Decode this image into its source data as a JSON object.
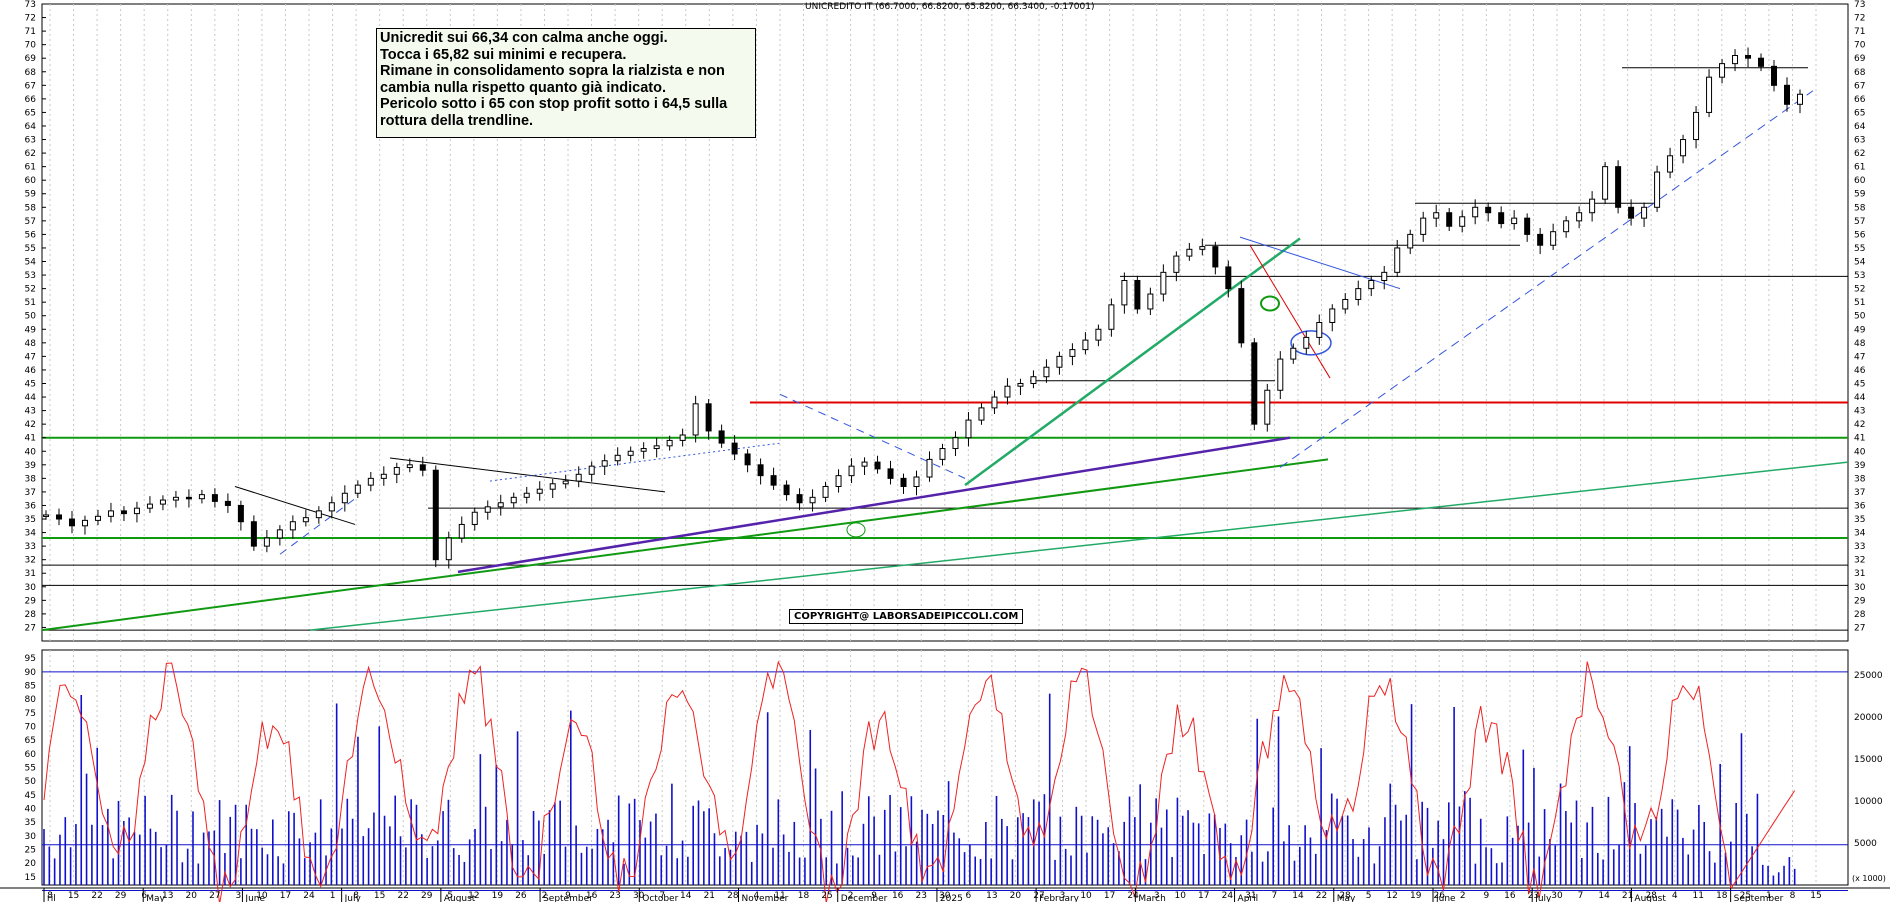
{
  "chart_data": [
    {
      "type": "candlestick",
      "title": "UNICREDITO IT (66.7000, 66.8200, 65.8200, 66.3400, -0.17001)",
      "ylim": [
        26,
        73
      ],
      "y_ticks": [
        27,
        28,
        29,
        30,
        31,
        32,
        33,
        34,
        35,
        36,
        37,
        38,
        39,
        40,
        41,
        42,
        43,
        44,
        45,
        46,
        47,
        48,
        49,
        50,
        51,
        52,
        53,
        54,
        55,
        56,
        57,
        58,
        59,
        60,
        61,
        62,
        63,
        64,
        65,
        66,
        67,
        68,
        69,
        70,
        71,
        72,
        73
      ],
      "x_day_ticks": [
        "8",
        "15",
        "22",
        "29",
        "6",
        "13",
        "20",
        "27",
        "3",
        "10",
        "17",
        "24",
        "1",
        "8",
        "15",
        "22",
        "29",
        "5",
        "12",
        "19",
        "26",
        "2",
        "9",
        "16",
        "23",
        "30",
        "7",
        "14",
        "21",
        "28",
        "4",
        "11",
        "18",
        "25",
        "2",
        "9",
        "16",
        "23",
        "30",
        "6",
        "13",
        "20",
        "27",
        "3",
        "10",
        "17",
        "24",
        "3",
        "10",
        "17",
        "24",
        "31",
        "7",
        "14",
        "22",
        "28",
        "5",
        "12",
        "19",
        "26",
        "2",
        "9",
        "16",
        "23",
        "30",
        "7",
        "14",
        "21",
        "28",
        "4",
        "11",
        "18",
        "25",
        "1",
        "8",
        "15"
      ],
      "x_month_labels": [
        "ril",
        "May",
        "June",
        "July",
        "August",
        "September",
        "October",
        "November",
        "December",
        "2025",
        "February",
        "March",
        "April",
        "May",
        "June",
        "July",
        "August",
        "September"
      ],
      "closes": [
        35.3,
        35.0,
        34.5,
        34.9,
        35.2,
        35.6,
        35.4,
        35.8,
        36.1,
        36.4,
        36.6,
        36.5,
        36.8,
        36.3,
        36.0,
        34.8,
        33.0,
        33.6,
        34.2,
        34.8,
        35.1,
        35.6,
        36.2,
        36.9,
        37.5,
        38.0,
        38.3,
        38.8,
        39.0,
        38.6,
        32.0,
        33.6,
        34.6,
        35.5,
        35.9,
        36.2,
        36.6,
        36.9,
        37.2,
        37.6,
        37.8,
        38.3,
        38.9,
        39.3,
        39.7,
        40.0,
        40.2,
        40.4,
        40.8,
        41.2,
        43.5,
        41.5,
        40.6,
        39.8,
        39.0,
        38.2,
        37.5,
        36.8,
        36.2,
        36.6,
        37.4,
        38.2,
        38.9,
        39.2,
        38.7,
        38.0,
        37.4,
        38.1,
        39.4,
        40.2,
        41.0,
        42.3,
        43.2,
        44.0,
        44.8,
        45.0,
        45.5,
        46.2,
        47.0,
        47.5,
        48.2,
        49.0,
        50.8,
        52.6,
        50.5,
        51.6,
        53.2,
        54.4,
        54.9,
        55.1,
        53.6,
        52.0,
        48.0,
        42.0,
        44.5,
        46.8,
        47.6,
        48.4,
        49.5,
        50.5,
        51.2,
        52.0,
        52.6,
        53.2,
        55.0,
        56.0,
        57.2,
        57.6,
        56.6,
        57.3,
        58.0,
        57.6,
        56.8,
        57.2,
        56.0,
        55.2,
        56.2,
        57.0,
        57.6,
        58.6,
        61.0,
        58.0,
        57.2,
        58.0,
        60.6,
        61.8,
        63.0,
        65.0,
        67.6,
        68.6,
        69.2,
        69.0,
        68.4,
        67.0,
        65.6,
        66.34
      ],
      "volume_axis_labels": [
        "5000",
        "10000",
        "15000",
        "20000",
        "25000"
      ],
      "volume_axis_note": "(x 1000)",
      "oscillator_ticks": [
        15,
        20,
        25,
        30,
        35,
        40,
        45,
        50,
        55,
        60,
        65,
        70,
        75,
        80,
        85,
        90,
        95
      ],
      "oscillator_levels": [
        90,
        10
      ],
      "volume_level": 4800,
      "annotations": {
        "note_lines": [
          "Unicredit sui 66,34 con calma anche oggi.",
          "Tocca i 65,82 sui minimi e recupera.",
          "Rimane in consolidamento sopra la rialzista e non",
          "cambia nulla rispetto quanto già indicato.",
          "Pericolo sotto i 65 con stop profit sotto i 64,5 sulla",
          "rottura della trendline."
        ],
        "copyright": "COPYRIGHT@ LABORSADEIPICCOLI.COM"
      },
      "colors": {
        "candle": "#000000",
        "support_red": "#e00000",
        "support_green": "#119911",
        "trend_teal": "#22aa66",
        "trend_purple": "#5522aa",
        "dashed_blue": "#3355dd",
        "oscillator": "#ee2222",
        "volume": "#1111cc",
        "note_bg": "#f4fbee"
      }
    }
  ]
}
